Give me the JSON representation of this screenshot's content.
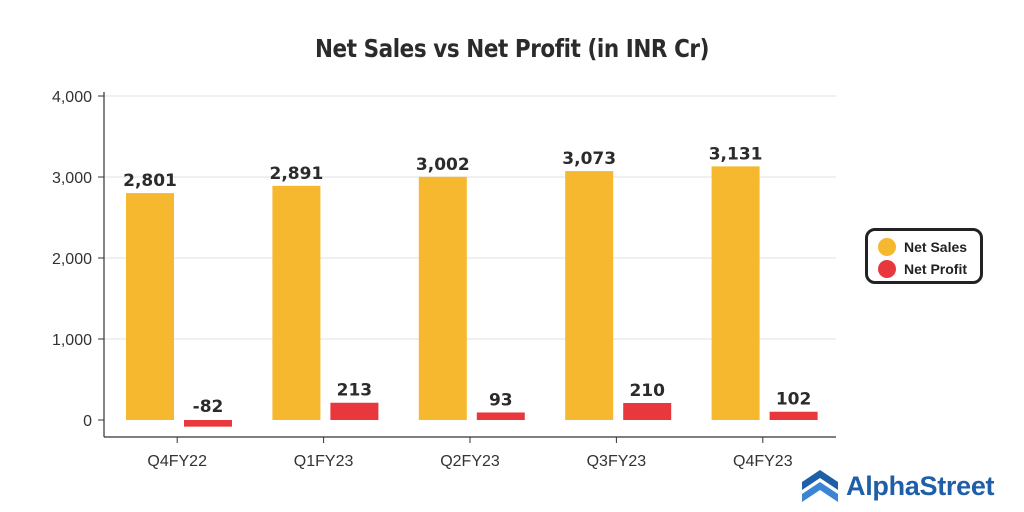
{
  "chart_data": {
    "type": "bar",
    "title": "Net Sales vs Net Profit (in INR Cr)",
    "categories": [
      "Q4FY22",
      "Q1FY23",
      "Q2FY23",
      "Q3FY23",
      "Q4FY23"
    ],
    "series": [
      {
        "name": "Net Sales",
        "color": "#F5B82E",
        "values": [
          2801,
          2891,
          3002,
          3073,
          3131
        ],
        "labels": [
          "2,801",
          "2,891",
          "3,002",
          "3,073",
          "3,131"
        ]
      },
      {
        "name": "Net Profit",
        "color": "#E8383D",
        "values": [
          -82,
          213,
          93,
          210,
          102
        ],
        "labels": [
          "-82",
          "213",
          "93",
          "210",
          "102"
        ]
      }
    ],
    "yticks": [
      0,
      1000,
      2000,
      3000,
      4000
    ],
    "ytick_labels": [
      "0",
      "1,000",
      "2,000",
      "3,000",
      "4,000"
    ],
    "ylim": [
      -100,
      4000
    ],
    "grid": true,
    "legend_position": "right"
  },
  "legend": {
    "items": [
      "Net Sales",
      "Net Profit"
    ]
  },
  "brand": {
    "name": "AlphaStreet",
    "color": "#1f5fa8",
    "icon": "alphastreet-logo-icon"
  }
}
